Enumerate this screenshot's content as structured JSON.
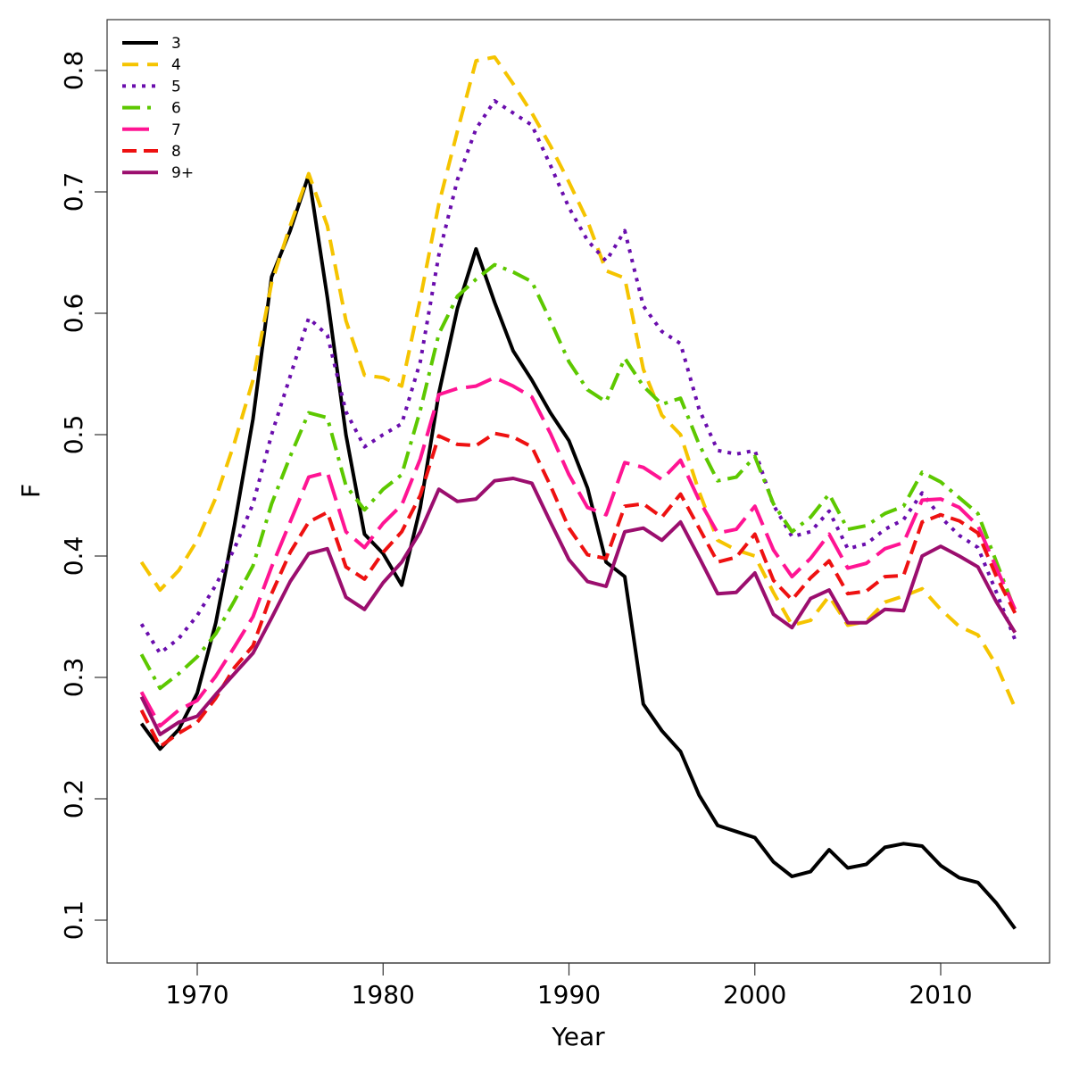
{
  "chart_data": {
    "type": "line",
    "title": "",
    "xlabel": "Year",
    "ylabel": "F",
    "xlim": [
      1967,
      2014
    ],
    "ylim": [
      0.09,
      0.82
    ],
    "x_ticks": [
      1970,
      1980,
      1990,
      2000,
      2010
    ],
    "y_ticks": [
      0.1,
      0.2,
      0.3,
      0.4,
      0.5,
      0.6,
      0.7,
      0.8
    ],
    "grid": false,
    "legend_position": "top-left",
    "x": [
      1967,
      1968,
      1969,
      1970,
      1971,
      1972,
      1973,
      1974,
      1975,
      1976,
      1977,
      1978,
      1979,
      1980,
      1981,
      1982,
      1983,
      1984,
      1985,
      1986,
      1987,
      1988,
      1989,
      1990,
      1991,
      1992,
      1993,
      1994,
      1995,
      1996,
      1997,
      1998,
      1999,
      2000,
      2001,
      2002,
      2003,
      2004,
      2005,
      2006,
      2007,
      2008,
      2009,
      2010,
      2011,
      2012,
      2013,
      2014
    ],
    "series": [
      {
        "name": "3",
        "color": "#000000",
        "dash": "",
        "values": [
          0.262,
          0.241,
          0.257,
          0.287,
          0.345,
          0.425,
          0.513,
          0.63,
          0.668,
          0.714,
          0.613,
          0.5,
          0.418,
          0.402,
          0.376,
          0.44,
          0.534,
          0.604,
          0.653,
          0.609,
          0.569,
          0.545,
          0.518,
          0.495,
          0.456,
          0.395,
          0.383,
          0.278,
          0.256,
          0.239,
          0.203,
          0.178,
          0.173,
          0.168,
          0.148,
          0.136,
          0.14,
          0.158,
          0.143,
          0.146,
          0.16,
          0.163,
          0.161,
          0.145,
          0.135,
          0.131,
          0.114,
          0.093
        ]
      },
      {
        "name": "4",
        "color": "#F5C400",
        "dash": "18,10",
        "values": [
          0.395,
          0.372,
          0.388,
          0.413,
          0.448,
          0.493,
          0.545,
          0.625,
          0.672,
          0.715,
          0.672,
          0.594,
          0.549,
          0.547,
          0.54,
          0.612,
          0.69,
          0.75,
          0.808,
          0.811,
          0.789,
          0.765,
          0.738,
          0.708,
          0.676,
          0.635,
          0.629,
          0.554,
          0.516,
          0.5,
          0.453,
          0.413,
          0.405,
          0.4,
          0.37,
          0.343,
          0.347,
          0.367,
          0.343,
          0.346,
          0.362,
          0.367,
          0.373,
          0.356,
          0.342,
          0.335,
          0.31,
          0.275
        ]
      },
      {
        "name": "5",
        "color": "#6A0DAD",
        "dash": "4,7",
        "values": [
          0.344,
          0.32,
          0.332,
          0.351,
          0.376,
          0.406,
          0.443,
          0.5,
          0.548,
          0.596,
          0.582,
          0.519,
          0.49,
          0.5,
          0.509,
          0.56,
          0.648,
          0.71,
          0.752,
          0.775,
          0.765,
          0.755,
          0.722,
          0.687,
          0.66,
          0.643,
          0.668,
          0.606,
          0.585,
          0.575,
          0.521,
          0.487,
          0.484,
          0.487,
          0.442,
          0.416,
          0.42,
          0.437,
          0.406,
          0.41,
          0.422,
          0.43,
          0.452,
          0.432,
          0.417,
          0.407,
          0.37,
          0.331
        ]
      },
      {
        "name": "6",
        "color": "#5DC800",
        "dash": "20,8,4,8",
        "values": [
          0.319,
          0.291,
          0.303,
          0.317,
          0.336,
          0.363,
          0.392,
          0.443,
          0.482,
          0.518,
          0.514,
          0.458,
          0.438,
          0.455,
          0.467,
          0.52,
          0.583,
          0.614,
          0.628,
          0.64,
          0.634,
          0.626,
          0.594,
          0.56,
          0.537,
          0.527,
          0.563,
          0.54,
          0.525,
          0.53,
          0.492,
          0.462,
          0.465,
          0.482,
          0.443,
          0.42,
          0.432,
          0.451,
          0.422,
          0.425,
          0.435,
          0.441,
          0.469,
          0.461,
          0.448,
          0.435,
          0.395,
          0.355
        ]
      },
      {
        "name": "7",
        "color": "#FF1493",
        "dash": "30,10",
        "values": [
          0.288,
          0.26,
          0.273,
          0.281,
          0.301,
          0.325,
          0.35,
          0.391,
          0.428,
          0.465,
          0.469,
          0.42,
          0.407,
          0.427,
          0.442,
          0.48,
          0.533,
          0.538,
          0.54,
          0.547,
          0.54,
          0.531,
          0.501,
          0.467,
          0.44,
          0.434,
          0.477,
          0.473,
          0.463,
          0.479,
          0.446,
          0.419,
          0.422,
          0.441,
          0.405,
          0.383,
          0.398,
          0.418,
          0.39,
          0.394,
          0.406,
          0.411,
          0.446,
          0.447,
          0.44,
          0.425,
          0.39,
          0.356
        ]
      },
      {
        "name": "8",
        "color": "#EE1111",
        "dash": "16,8",
        "values": [
          0.273,
          0.243,
          0.254,
          0.263,
          0.283,
          0.308,
          0.326,
          0.369,
          0.403,
          0.428,
          0.436,
          0.391,
          0.381,
          0.403,
          0.42,
          0.45,
          0.499,
          0.492,
          0.491,
          0.501,
          0.498,
          0.49,
          0.458,
          0.423,
          0.401,
          0.398,
          0.441,
          0.443,
          0.432,
          0.451,
          0.423,
          0.395,
          0.399,
          0.418,
          0.38,
          0.364,
          0.382,
          0.396,
          0.369,
          0.371,
          0.383,
          0.384,
          0.428,
          0.434,
          0.429,
          0.419,
          0.383,
          0.353
        ]
      },
      {
        "name": "9+",
        "color": "#9B0E6E",
        "dash": "",
        "values": [
          0.284,
          0.253,
          0.263,
          0.268,
          0.286,
          0.303,
          0.32,
          0.349,
          0.379,
          0.402,
          0.406,
          0.366,
          0.356,
          0.378,
          0.395,
          0.42,
          0.455,
          0.445,
          0.447,
          0.462,
          0.464,
          0.46,
          0.428,
          0.397,
          0.379,
          0.375,
          0.42,
          0.423,
          0.413,
          0.428,
          0.399,
          0.369,
          0.37,
          0.386,
          0.352,
          0.341,
          0.365,
          0.372,
          0.345,
          0.345,
          0.356,
          0.355,
          0.4,
          0.408,
          0.4,
          0.391,
          0.362,
          0.337
        ]
      }
    ]
  }
}
